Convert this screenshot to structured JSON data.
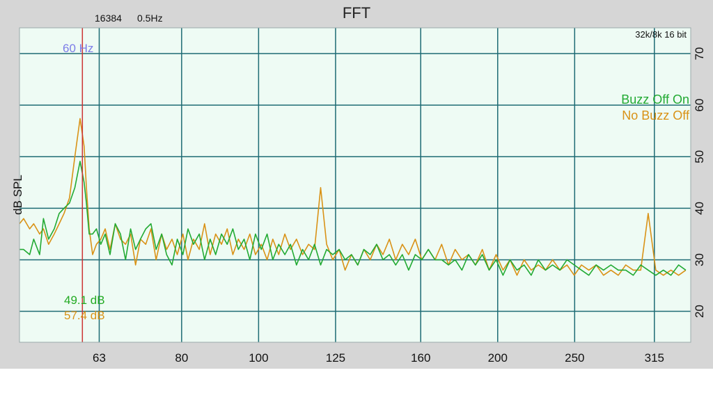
{
  "header": {
    "fft_size": "16384",
    "resolution": "0.5Hz",
    "title": "FFT",
    "meta": "32k/8k 16 bit"
  },
  "chart_data": {
    "type": "line",
    "title": "FFT",
    "xlabel": "",
    "ylabel": "dB SPL",
    "x_scale": "log",
    "xlim": [
      50,
      350
    ],
    "ylim": [
      14,
      75
    ],
    "x_ticks": [
      63,
      80,
      100,
      125,
      160,
      200,
      250,
      315
    ],
    "y_ticks": [
      20,
      30,
      40,
      50,
      60,
      70
    ],
    "grid": true,
    "legend_position": "right",
    "marker": {
      "x": 60,
      "label": "60 Hz",
      "color": "#cc3333"
    },
    "readouts": [
      {
        "text": "49.1 dB",
        "color": "#22aa22"
      },
      {
        "text": "57.4 dB",
        "color": "#d99216"
      }
    ],
    "series": [
      {
        "name": "Buzz Off On",
        "color": "#22aa33",
        "x": [
          50.0,
          50.6,
          51.5,
          52.1,
          53.0,
          53.6,
          54.4,
          55.3,
          56.1,
          56.9,
          57.8,
          58.7,
          59.6,
          60.3,
          60.7,
          61.2,
          61.8,
          62.5,
          63.3,
          64.1,
          65.0,
          66.0,
          67.0,
          68.0,
          69.0,
          70.0,
          71.0,
          72.1,
          73.2,
          74.3,
          75.5,
          76.6,
          77.8,
          79.0,
          80.3,
          81.5,
          82.8,
          84.2,
          85.5,
          86.9,
          88.3,
          89.8,
          91.3,
          92.8,
          94.3,
          95.9,
          97.5,
          99.1,
          100.8,
          102.5,
          104.2,
          106.0,
          107.9,
          109.7,
          111.6,
          113.6,
          115.6,
          117.6,
          119.7,
          121.8,
          124.0,
          126.3,
          128.5,
          130.9,
          133.3,
          135.7,
          138.2,
          140.8,
          143.4,
          146.1,
          148.8,
          151.7,
          154.5,
          157.5,
          160.5,
          163.6,
          166.8,
          170.0,
          173.4,
          176.8,
          180.3,
          183.8,
          187.5,
          191.3,
          195.1,
          199.1,
          203.1,
          207.3,
          211.5,
          215.9,
          220.4,
          225.0,
          229.7,
          234.5,
          239.5,
          244.5,
          249.7,
          255.0,
          260.5,
          266.1,
          271.8,
          277.7,
          283.7,
          289.9,
          296.3,
          302.8,
          309.4,
          316.3,
          323.3,
          330.5,
          337.9,
          345.0
        ],
        "y": [
          32.0,
          32.0,
          31.0,
          34.0,
          31.0,
          38.0,
          34.0,
          36.0,
          39.0,
          40.0,
          41.0,
          44.0,
          49.1,
          45.0,
          41.0,
          35.0,
          35.0,
          36.0,
          33.0,
          35.0,
          31.0,
          37.0,
          35.0,
          30.0,
          36.0,
          32.0,
          34.0,
          36.0,
          37.0,
          32.0,
          35.0,
          31.0,
          29.0,
          34.0,
          31.0,
          36.0,
          33.0,
          35.0,
          30.0,
          34.0,
          31.0,
          35.0,
          33.0,
          36.0,
          32.0,
          34.0,
          30.0,
          35.0,
          32.0,
          35.0,
          30.0,
          33.0,
          31.0,
          33.0,
          29.0,
          32.0,
          30.0,
          33.0,
          29.0,
          32.0,
          31.0,
          32.0,
          30.0,
          31.0,
          29.0,
          32.0,
          31.0,
          33.0,
          30.0,
          31.0,
          29.0,
          31.0,
          28.0,
          31.0,
          30.0,
          32.0,
          30.0,
          30.0,
          29.0,
          30.0,
          28.0,
          31.0,
          29.0,
          31.0,
          28.0,
          30.0,
          27.0,
          30.0,
          28.0,
          29.0,
          27.0,
          30.0,
          28.0,
          29.0,
          28.0,
          30.0,
          29.0,
          28.0,
          27.0,
          29.0,
          28.0,
          29.0,
          28.0,
          28.0,
          27.0,
          29.0,
          28.0,
          27.0,
          28.0,
          27.0,
          29.0,
          28.0
        ]
      },
      {
        "name": "No Buzz Off",
        "color": "#d99216",
        "x": [
          50.0,
          50.6,
          51.5,
          52.1,
          53.0,
          53.6,
          54.4,
          55.3,
          56.1,
          56.9,
          57.8,
          58.7,
          59.6,
          60.3,
          60.7,
          61.2,
          61.8,
          62.5,
          63.3,
          64.1,
          65.0,
          66.0,
          67.0,
          68.0,
          69.0,
          70.0,
          71.0,
          72.1,
          73.2,
          74.3,
          75.5,
          76.6,
          77.8,
          79.0,
          80.3,
          81.5,
          82.8,
          84.2,
          85.5,
          86.9,
          88.3,
          89.8,
          91.3,
          92.8,
          94.3,
          95.9,
          97.5,
          99.1,
          100.8,
          102.5,
          104.2,
          106.0,
          107.9,
          109.7,
          111.6,
          113.6,
          115.6,
          117.6,
          119.7,
          121.8,
          124.0,
          126.3,
          128.5,
          130.9,
          133.3,
          135.7,
          138.2,
          140.8,
          143.4,
          146.1,
          148.8,
          151.7,
          154.5,
          157.5,
          160.5,
          163.6,
          166.8,
          170.0,
          173.4,
          176.8,
          180.3,
          183.8,
          187.5,
          191.3,
          195.1,
          199.1,
          203.1,
          207.3,
          211.5,
          215.9,
          220.4,
          225.0,
          229.7,
          234.5,
          239.5,
          244.5,
          249.7,
          255.0,
          260.5,
          266.1,
          271.8,
          277.7,
          283.7,
          289.9,
          296.3,
          302.8,
          309.4,
          316.3,
          323.3,
          330.5,
          337.9,
          345.0
        ],
        "y": [
          37.0,
          38.0,
          36.0,
          37.0,
          35.0,
          36.0,
          33.0,
          35.0,
          37.0,
          39.0,
          42.0,
          50.0,
          57.4,
          52.0,
          44.0,
          36.0,
          31.0,
          33.0,
          34.0,
          36.0,
          32.0,
          37.0,
          34.0,
          33.0,
          35.0,
          29.0,
          34.0,
          33.0,
          36.0,
          30.0,
          35.0,
          32.0,
          34.0,
          31.0,
          35.0,
          30.0,
          34.0,
          32.0,
          37.0,
          31.0,
          35.0,
          33.0,
          36.0,
          31.0,
          34.0,
          32.0,
          35.0,
          31.0,
          33.0,
          30.0,
          34.0,
          31.0,
          35.0,
          32.0,
          34.0,
          31.0,
          33.0,
          32.0,
          44.0,
          33.0,
          30.0,
          32.0,
          28.0,
          31.0,
          29.0,
          32.0,
          30.0,
          33.0,
          31.0,
          34.0,
          30.0,
          33.0,
          31.0,
          34.0,
          30.0,
          32.0,
          30.0,
          33.0,
          29.0,
          32.0,
          30.0,
          31.0,
          29.0,
          32.0,
          28.0,
          31.0,
          28.0,
          30.0,
          27.0,
          30.0,
          28.0,
          29.0,
          28.0,
          30.0,
          28.0,
          29.0,
          27.0,
          29.0,
          28.0,
          29.0,
          27.0,
          28.0,
          27.0,
          29.0,
          28.0,
          28.0,
          39.0,
          28.0,
          27.0,
          28.0,
          27.0,
          28.0
        ]
      }
    ]
  }
}
